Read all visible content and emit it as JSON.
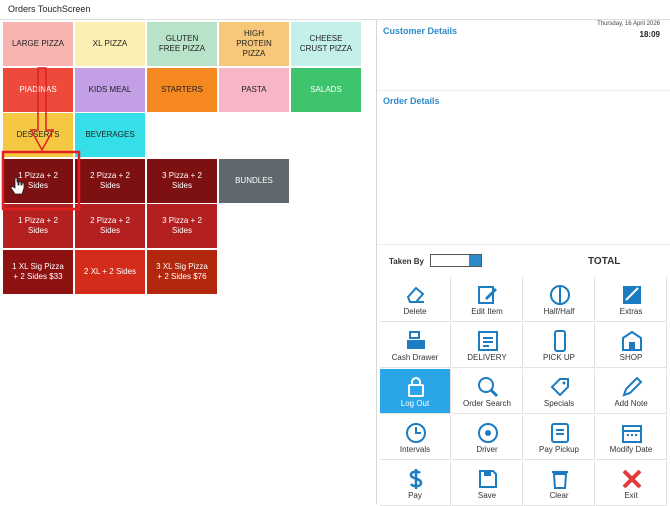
{
  "window": {
    "title": "Orders TouchScreen"
  },
  "menu": {
    "rows": [
      [
        {
          "label": "LARGE PIZZA",
          "color": "#f7b4b0"
        },
        {
          "label": "XL PIZZA",
          "color": "#fcefb4"
        },
        {
          "label": "GLUTEN FREE PIZZA",
          "color": "#b8e3c8"
        },
        {
          "label": "HIGH PROTEIN PIZZA",
          "color": "#f7c77a"
        },
        {
          "label": "CHEESE CRUST PIZZA",
          "color": "#c4f0ec"
        }
      ],
      [
        {
          "label": "PIADINAS",
          "color": "#ee4a3b"
        },
        {
          "label": "KIDS MEAL",
          "color": "#c39fe6"
        },
        {
          "label": "STARTERS",
          "color": "#f5891f"
        },
        {
          "label": "PASTA",
          "color": "#f7b5c6"
        },
        {
          "label": "SALADS",
          "color": "#3ec46c"
        }
      ],
      [
        {
          "label": "DESSERTS",
          "color": "#f5c843"
        },
        {
          "label": "BEVERAGES",
          "color": "#35dfe8"
        }
      ],
      [
        {
          "label": "1 Pizza + 2 Sides",
          "color": "#7d1010"
        },
        {
          "label": "2 Pizza + 2 Sides",
          "color": "#7d1010"
        },
        {
          "label": "3 Pizza + 2 Sides",
          "color": "#7d1010"
        },
        {
          "label": "BUNDLES",
          "color": "#5e686d"
        }
      ],
      [
        {
          "label": "1 Pizza + 2 Sides",
          "color": "#b42020"
        },
        {
          "label": "2 Pizza + 2 Sides",
          "color": "#b42020"
        },
        {
          "label": "3 Pizza + 2 Sides",
          "color": "#b42020"
        }
      ],
      [
        {
          "label": "1 XL Sig Pizza + 2 Sides $33",
          "color": "#8e1212"
        },
        {
          "label": "2 XL + 2 Sides",
          "color": "#d52b1a"
        },
        {
          "label": "3 XL Sig Pizza + 2 Sides $76",
          "color": "#b4270f"
        }
      ]
    ]
  },
  "panel": {
    "customer_title": "Customer Details",
    "date": "Thursday, 16 April 2026",
    "time": "18:09",
    "order_title": "Order Details",
    "taken_by": "Taken By",
    "total": "TOTAL"
  },
  "actions": {
    "rows": [
      [
        {
          "label": "Delete"
        },
        {
          "label": "Edit Item"
        },
        {
          "label": "Half/Half"
        },
        {
          "label": "Extras"
        }
      ],
      [
        {
          "label": "Cash Drawer"
        },
        {
          "label": "DELIVERY"
        },
        {
          "label": "PICK UP"
        },
        {
          "label": "SHOP"
        }
      ],
      [
        {
          "label": "Log Out",
          "active": true
        },
        {
          "label": "Order Search"
        },
        {
          "label": "Specials"
        },
        {
          "label": "Add Note"
        }
      ],
      [
        {
          "label": "Intervals"
        },
        {
          "label": "Driver"
        },
        {
          "label": "Pay Pickup"
        },
        {
          "label": "Modify Date"
        }
      ],
      [
        {
          "label": "Pay"
        },
        {
          "label": "Save"
        },
        {
          "label": "Clear"
        },
        {
          "label": "Exit",
          "color": "#e23b3b"
        }
      ]
    ]
  }
}
